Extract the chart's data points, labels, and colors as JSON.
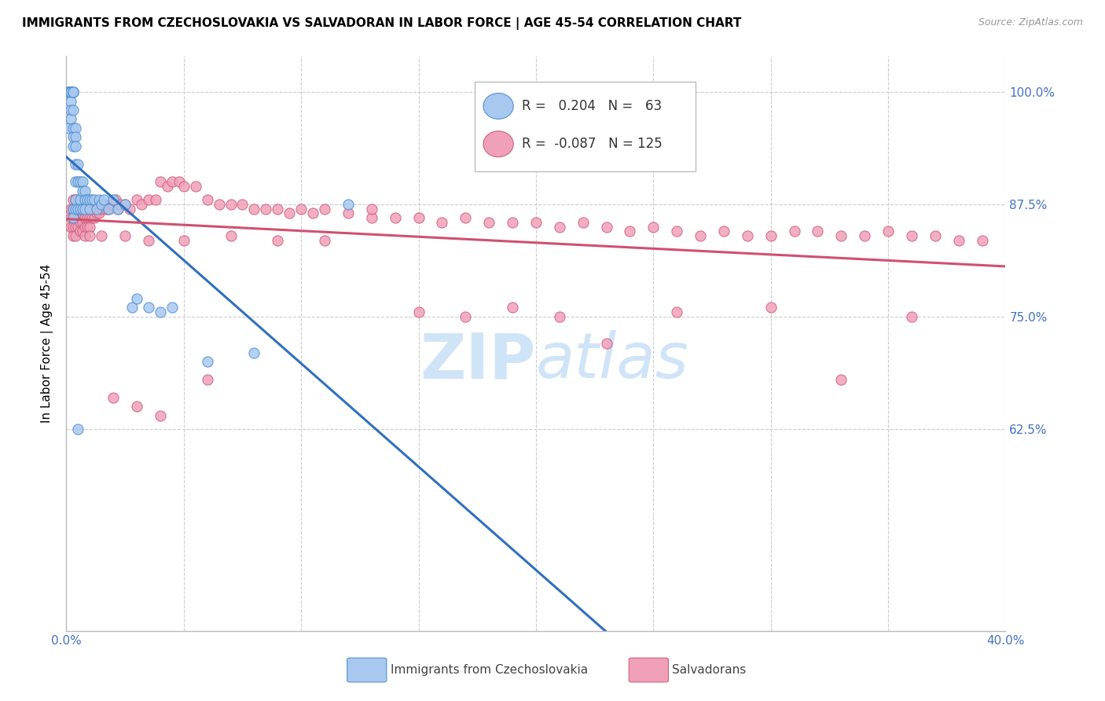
{
  "title": "IMMIGRANTS FROM CZECHOSLOVAKIA VS SALVADORAN IN LABOR FORCE | AGE 45-54 CORRELATION CHART",
  "source_text": "Source: ZipAtlas.com",
  "ylabel": "In Labor Force | Age 45-54",
  "xlim": [
    0.0,
    0.4
  ],
  "ylim": [
    0.4,
    1.04
  ],
  "yticks": [
    0.625,
    0.75,
    0.875,
    1.0
  ],
  "ytick_labels": [
    "62.5%",
    "75.0%",
    "87.5%",
    "100.0%"
  ],
  "xticks": [
    0.0,
    0.05,
    0.1,
    0.15,
    0.2,
    0.25,
    0.3,
    0.35,
    0.4
  ],
  "legend_blue_r": "0.204",
  "legend_blue_n": "63",
  "legend_pink_r": "-0.087",
  "legend_pink_n": "125",
  "blue_fill": "#a8c8f0",
  "blue_edge": "#5090d0",
  "pink_fill": "#f0a0b8",
  "pink_edge": "#d06080",
  "blue_line": "#3070c0",
  "pink_line": "#d05070",
  "axis_label_color": "#4472c4",
  "grid_color": "#cccccc",
  "watermark_color": "#d0e4f8",
  "title_fontsize": 11,
  "source_fontsize": 9,
  "marker_size": 90,
  "blue_x": [
    0.001,
    0.001,
    0.001,
    0.001,
    0.001,
    0.002,
    0.002,
    0.002,
    0.002,
    0.002,
    0.002,
    0.002,
    0.003,
    0.003,
    0.003,
    0.003,
    0.003,
    0.003,
    0.003,
    0.003,
    0.003,
    0.003,
    0.004,
    0.004,
    0.004,
    0.004,
    0.004,
    0.004,
    0.004,
    0.005,
    0.005,
    0.005,
    0.006,
    0.006,
    0.006,
    0.007,
    0.007,
    0.007,
    0.008,
    0.008,
    0.008,
    0.009,
    0.01,
    0.01,
    0.011,
    0.012,
    0.013,
    0.014,
    0.015,
    0.016,
    0.018,
    0.02,
    0.022,
    0.025,
    0.028,
    0.03,
    0.035,
    0.04,
    0.045,
    0.06,
    0.08,
    0.005,
    0.12
  ],
  "blue_y": [
    1.0,
    1.0,
    1.0,
    1.0,
    0.96,
    1.0,
    1.0,
    1.0,
    1.0,
    0.99,
    0.98,
    0.97,
    1.0,
    1.0,
    1.0,
    1.0,
    0.98,
    0.96,
    0.95,
    0.94,
    0.87,
    0.86,
    0.96,
    0.95,
    0.94,
    0.92,
    0.9,
    0.88,
    0.87,
    0.92,
    0.9,
    0.87,
    0.9,
    0.88,
    0.87,
    0.9,
    0.89,
    0.87,
    0.89,
    0.88,
    0.87,
    0.88,
    0.88,
    0.87,
    0.88,
    0.88,
    0.87,
    0.88,
    0.875,
    0.88,
    0.87,
    0.88,
    0.87,
    0.875,
    0.76,
    0.77,
    0.76,
    0.755,
    0.76,
    0.7,
    0.71,
    0.625,
    0.875
  ],
  "pink_x": [
    0.002,
    0.002,
    0.002,
    0.003,
    0.003,
    0.003,
    0.003,
    0.003,
    0.004,
    0.004,
    0.004,
    0.004,
    0.004,
    0.005,
    0.005,
    0.005,
    0.005,
    0.006,
    0.006,
    0.006,
    0.006,
    0.007,
    0.007,
    0.007,
    0.007,
    0.008,
    0.008,
    0.008,
    0.008,
    0.009,
    0.009,
    0.009,
    0.01,
    0.01,
    0.01,
    0.011,
    0.011,
    0.012,
    0.012,
    0.013,
    0.013,
    0.014,
    0.014,
    0.015,
    0.016,
    0.017,
    0.018,
    0.019,
    0.02,
    0.021,
    0.022,
    0.023,
    0.025,
    0.027,
    0.03,
    0.032,
    0.035,
    0.038,
    0.04,
    0.043,
    0.045,
    0.048,
    0.05,
    0.055,
    0.06,
    0.065,
    0.07,
    0.075,
    0.08,
    0.085,
    0.09,
    0.095,
    0.1,
    0.105,
    0.11,
    0.12,
    0.13,
    0.14,
    0.15,
    0.16,
    0.17,
    0.18,
    0.19,
    0.2,
    0.21,
    0.22,
    0.23,
    0.24,
    0.25,
    0.26,
    0.27,
    0.28,
    0.29,
    0.3,
    0.31,
    0.32,
    0.33,
    0.34,
    0.35,
    0.36,
    0.37,
    0.38,
    0.39,
    0.015,
    0.025,
    0.035,
    0.05,
    0.07,
    0.09,
    0.11,
    0.13,
    0.15,
    0.17,
    0.19,
    0.21,
    0.23,
    0.26,
    0.3,
    0.33,
    0.36,
    0.01,
    0.02,
    0.03,
    0.04,
    0.06
  ],
  "pink_y": [
    0.87,
    0.86,
    0.85,
    0.88,
    0.87,
    0.86,
    0.85,
    0.84,
    0.88,
    0.87,
    0.86,
    0.85,
    0.84,
    0.88,
    0.87,
    0.86,
    0.85,
    0.875,
    0.865,
    0.855,
    0.845,
    0.875,
    0.865,
    0.855,
    0.845,
    0.87,
    0.86,
    0.85,
    0.84,
    0.87,
    0.86,
    0.85,
    0.87,
    0.86,
    0.85,
    0.87,
    0.86,
    0.87,
    0.86,
    0.875,
    0.865,
    0.875,
    0.865,
    0.87,
    0.875,
    0.87,
    0.87,
    0.875,
    0.875,
    0.88,
    0.87,
    0.875,
    0.875,
    0.87,
    0.88,
    0.875,
    0.88,
    0.88,
    0.9,
    0.895,
    0.9,
    0.9,
    0.895,
    0.895,
    0.88,
    0.875,
    0.875,
    0.875,
    0.87,
    0.87,
    0.87,
    0.865,
    0.87,
    0.865,
    0.87,
    0.865,
    0.86,
    0.86,
    0.86,
    0.855,
    0.86,
    0.855,
    0.855,
    0.855,
    0.85,
    0.855,
    0.85,
    0.845,
    0.85,
    0.845,
    0.84,
    0.845,
    0.84,
    0.84,
    0.845,
    0.845,
    0.84,
    0.84,
    0.845,
    0.84,
    0.84,
    0.835,
    0.835,
    0.84,
    0.84,
    0.835,
    0.835,
    0.84,
    0.835,
    0.835,
    0.87,
    0.755,
    0.75,
    0.76,
    0.75,
    0.72,
    0.755,
    0.76,
    0.68,
    0.75,
    0.84,
    0.66,
    0.65,
    0.64,
    0.68
  ]
}
